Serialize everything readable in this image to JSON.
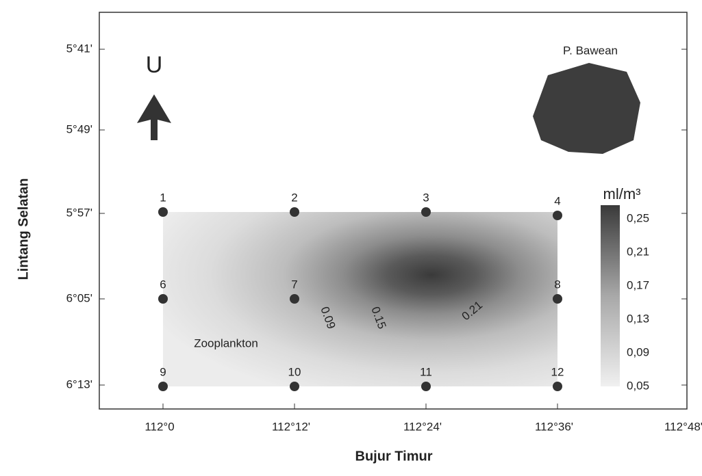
{
  "island_label": "P. Bawean",
  "north_label": "U",
  "layer_label": "Zooplankton",
  "axes": {
    "x_label": "Bujur Timur",
    "y_label": "Lintang Selatan",
    "x_ticks": [
      "112°0",
      "112°12'",
      "112°24'",
      "112°36'",
      "112°48'"
    ],
    "y_ticks": [
      "5°41'",
      "5°49'",
      "5°57'",
      "6°05'",
      "6°13'"
    ]
  },
  "stations": [
    {
      "label": "1"
    },
    {
      "label": "2"
    },
    {
      "label": "3"
    },
    {
      "label": "4"
    },
    {
      "label": "6"
    },
    {
      "label": "7"
    },
    {
      "label": "8"
    },
    {
      "label": "9"
    },
    {
      "label": "10"
    },
    {
      "label": "11"
    },
    {
      "label": "12"
    }
  ],
  "contour_labels": [
    "0.09",
    "0.15",
    "0.21"
  ],
  "colorbar": {
    "unit": "ml/m³",
    "ticks": [
      "0,25",
      "0,21",
      "0,17",
      "0,13",
      "0,09",
      "0,05"
    ]
  }
}
